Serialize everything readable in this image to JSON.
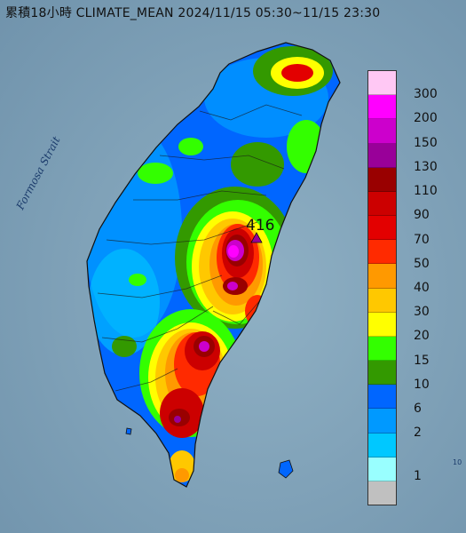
{
  "title": "累積18小時 CLIMATE_MEAN 2024/11/15 05:30~11/15 23:30",
  "strait_label": "Formosa Strait",
  "peak": {
    "label": "416"
  },
  "legend": {
    "colors": [
      "#ffc8f4",
      "#ff00ff",
      "#cc00cc",
      "#990099",
      "#990000",
      "#cc0000",
      "#e30000",
      "#ff2a00",
      "#ff9900",
      "#ffc800",
      "#ffff00",
      "#33ff00",
      "#339900",
      "#0066ff",
      "#0099ff",
      "#00c8ff",
      "#99ffff",
      "#c0c0c0"
    ],
    "labels": [
      "300",
      "200",
      "150",
      "130",
      "110",
      "90",
      "70",
      "50",
      "40",
      "30",
      "20",
      "15",
      "10",
      "6",
      "2",
      "1"
    ]
  },
  "scale_mark": "10"
}
